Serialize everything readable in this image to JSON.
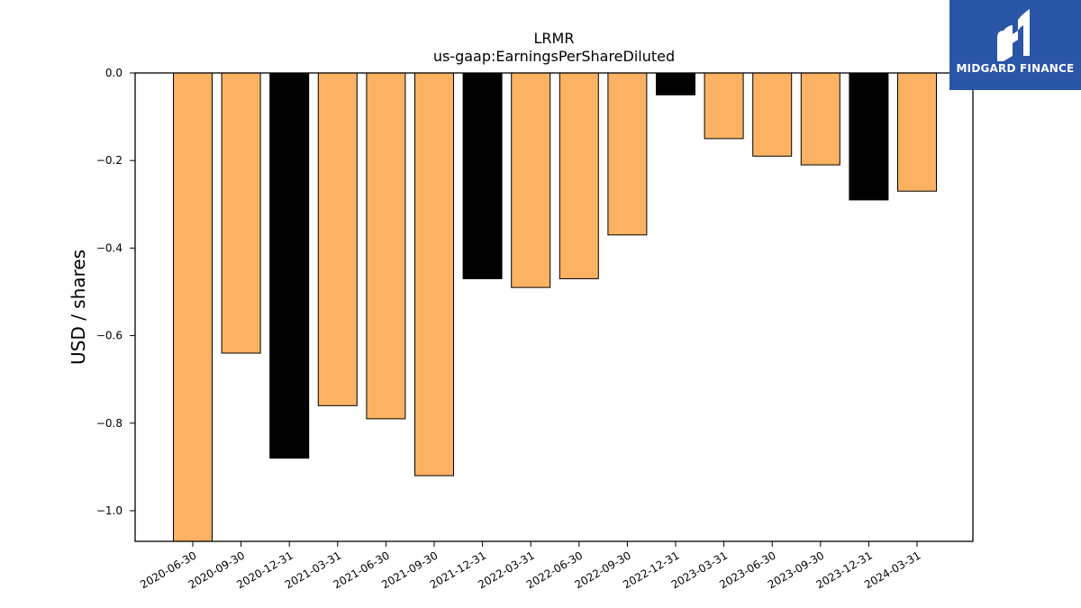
{
  "brand": {
    "name": "MIDGARD FINANCE",
    "background": "#2a56a8"
  },
  "chart_data": {
    "type": "bar",
    "title": "LRMR",
    "subtitle": "us-gaap:EarningsPerShareDiluted",
    "xlabel": "",
    "ylabel": "USD / shares",
    "categories": [
      "2020-06-30",
      "2020-09-30",
      "2020-12-31",
      "2021-03-31",
      "2021-06-30",
      "2021-09-30",
      "2021-12-31",
      "2022-03-31",
      "2022-06-30",
      "2022-09-30",
      "2022-12-31",
      "2023-03-31",
      "2023-06-30",
      "2023-09-30",
      "2023-12-31",
      "2024-03-31"
    ],
    "values": [
      -1.07,
      -0.64,
      -0.88,
      -0.76,
      -0.79,
      -0.92,
      -0.47,
      -0.49,
      -0.47,
      -0.37,
      -0.05,
      -0.15,
      -0.19,
      -0.21,
      -0.29,
      -0.27
    ],
    "bar_colors": [
      "#fbb262",
      "#fbb262",
      "#000000",
      "#fbb262",
      "#fbb262",
      "#fbb262",
      "#000000",
      "#fbb262",
      "#fbb262",
      "#fbb262",
      "#000000",
      "#fbb262",
      "#fbb262",
      "#fbb262",
      "#000000",
      "#fbb262"
    ],
    "ylim": [
      -1.07,
      0.0
    ],
    "yticks": [
      0.0,
      -0.2,
      -0.4,
      -0.6,
      -0.8,
      -1.0
    ],
    "ytick_labels": [
      "0.0",
      "−0.2",
      "−0.4",
      "−0.6",
      "−0.8",
      "−1.0"
    ],
    "grid": false,
    "legend": "none"
  }
}
